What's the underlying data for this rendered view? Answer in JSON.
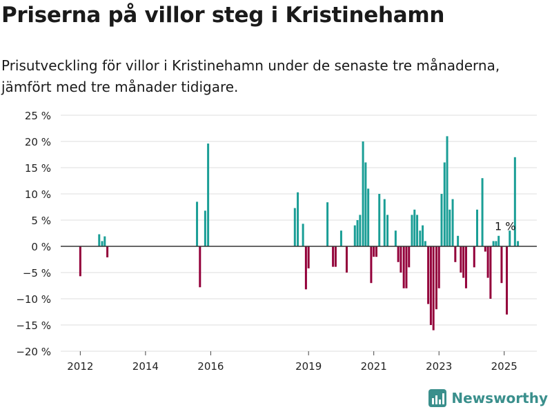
{
  "title": "Priserna på villor steg i Kristinehamn",
  "subtitle": "Prisutveckling för villor i Kristinehamn under de senaste tre månaderna, jämfört med tre månader tidigare.",
  "brand": {
    "name": "Newsworthy",
    "icon": "bar-chart-logo-icon",
    "color": "#3a8f8c"
  },
  "colors": {
    "positive": "#1a9e96",
    "negative": "#93003a",
    "grid": "#dcdcdc",
    "zero": "#333333"
  },
  "chart_data": {
    "type": "bar",
    "xlabel": "",
    "ylabel": "",
    "ylim": [
      -20,
      25
    ],
    "yticks": [
      -20,
      -15,
      -10,
      -5,
      0,
      5,
      10,
      15,
      20,
      25
    ],
    "ytick_labels": [
      "−20 %",
      "−15 %",
      "−10 %",
      "−5 %",
      "0 %",
      "5 %",
      "10 %",
      "15 %",
      "20 %",
      "25 %"
    ],
    "xlim": [
      2011.4,
      2026.0
    ],
    "xticks": [
      2012,
      2014,
      2016,
      2019,
      2021,
      2023,
      2025
    ],
    "xtick_labels": [
      "2012",
      "2014",
      "2016",
      "2019",
      "2021",
      "2023",
      "2025"
    ],
    "grid": true,
    "annotation": {
      "text": "1 %",
      "x": 2025.35,
      "y": 1
    },
    "points": [
      {
        "x": 2012.0,
        "y": -5.7
      },
      {
        "x": 2012.58,
        "y": 2.3
      },
      {
        "x": 2012.67,
        "y": 1.0
      },
      {
        "x": 2012.75,
        "y": 1.9
      },
      {
        "x": 2012.83,
        "y": -2.1
      },
      {
        "x": 2015.58,
        "y": 8.5
      },
      {
        "x": 2015.67,
        "y": -7.8
      },
      {
        "x": 2015.83,
        "y": 6.8
      },
      {
        "x": 2015.92,
        "y": 19.6
      },
      {
        "x": 2018.58,
        "y": 7.3
      },
      {
        "x": 2018.67,
        "y": 10.3
      },
      {
        "x": 2018.83,
        "y": 4.3
      },
      {
        "x": 2018.92,
        "y": -8.2
      },
      {
        "x": 2019.0,
        "y": -4.2
      },
      {
        "x": 2019.58,
        "y": 8.4
      },
      {
        "x": 2019.75,
        "y": -3.9
      },
      {
        "x": 2019.83,
        "y": -3.9
      },
      {
        "x": 2020.0,
        "y": 3.0
      },
      {
        "x": 2020.17,
        "y": -5.0
      },
      {
        "x": 2020.42,
        "y": 4.0
      },
      {
        "x": 2020.5,
        "y": 5.0
      },
      {
        "x": 2020.58,
        "y": 6.0
      },
      {
        "x": 2020.67,
        "y": 20.0
      },
      {
        "x": 2020.75,
        "y": 16.0
      },
      {
        "x": 2020.83,
        "y": 11.0
      },
      {
        "x": 2020.92,
        "y": -7.0
      },
      {
        "x": 2021.0,
        "y": -2.0
      },
      {
        "x": 2021.08,
        "y": -2.0
      },
      {
        "x": 2021.17,
        "y": 10.0
      },
      {
        "x": 2021.33,
        "y": 9.0
      },
      {
        "x": 2021.42,
        "y": 6.0
      },
      {
        "x": 2021.67,
        "y": 3.0
      },
      {
        "x": 2021.75,
        "y": -3.0
      },
      {
        "x": 2021.83,
        "y": -5.0
      },
      {
        "x": 2021.92,
        "y": -8.0
      },
      {
        "x": 2022.0,
        "y": -8.0
      },
      {
        "x": 2022.08,
        "y": -4.0
      },
      {
        "x": 2022.17,
        "y": 6.0
      },
      {
        "x": 2022.25,
        "y": 7.0
      },
      {
        "x": 2022.33,
        "y": 6.0
      },
      {
        "x": 2022.42,
        "y": 3.0
      },
      {
        "x": 2022.5,
        "y": 4.0
      },
      {
        "x": 2022.58,
        "y": 1.0
      },
      {
        "x": 2022.67,
        "y": -11.0
      },
      {
        "x": 2022.75,
        "y": -15.0
      },
      {
        "x": 2022.83,
        "y": -16.0
      },
      {
        "x": 2022.92,
        "y": -12.0
      },
      {
        "x": 2023.0,
        "y": -8.0
      },
      {
        "x": 2023.08,
        "y": 10.0
      },
      {
        "x": 2023.17,
        "y": 16.0
      },
      {
        "x": 2023.25,
        "y": 21.0
      },
      {
        "x": 2023.33,
        "y": 7.0
      },
      {
        "x": 2023.42,
        "y": 9.0
      },
      {
        "x": 2023.5,
        "y": -3.0
      },
      {
        "x": 2023.58,
        "y": 2.0
      },
      {
        "x": 2023.67,
        "y": -5.0
      },
      {
        "x": 2023.75,
        "y": -6.0
      },
      {
        "x": 2023.83,
        "y": -8.0
      },
      {
        "x": 2024.08,
        "y": -4.0
      },
      {
        "x": 2024.17,
        "y": 7.0
      },
      {
        "x": 2024.33,
        "y": 13.0
      },
      {
        "x": 2024.42,
        "y": -1.0
      },
      {
        "x": 2024.5,
        "y": -6.0
      },
      {
        "x": 2024.58,
        "y": -10.0
      },
      {
        "x": 2024.67,
        "y": 1.0
      },
      {
        "x": 2024.75,
        "y": 1.0
      },
      {
        "x": 2024.83,
        "y": 2.0
      },
      {
        "x": 2024.92,
        "y": -7.0
      },
      {
        "x": 2025.08,
        "y": -13.0
      },
      {
        "x": 2025.17,
        "y": 3.0
      },
      {
        "x": 2025.33,
        "y": 17.0
      },
      {
        "x": 2025.42,
        "y": 1.0
      }
    ]
  }
}
